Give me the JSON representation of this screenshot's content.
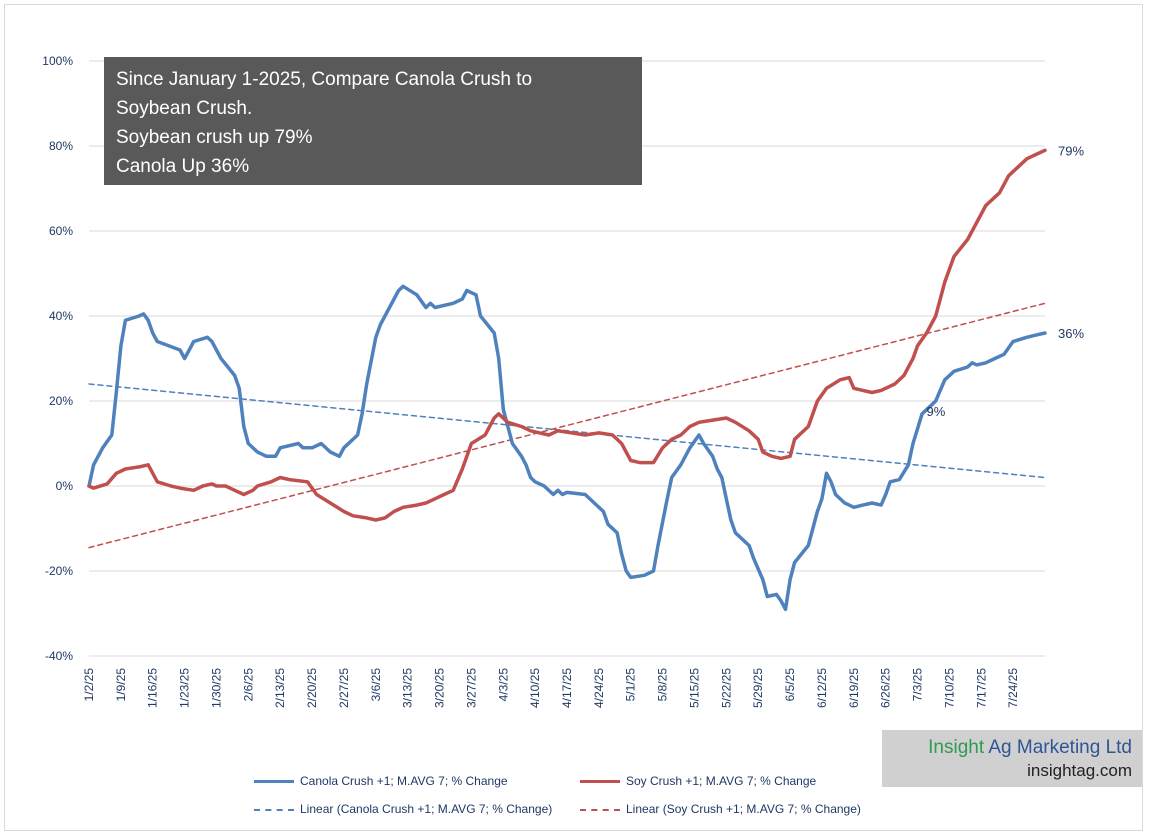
{
  "annotation": {
    "lines": [
      "Since January 1-2025, Compare Canola Crush to",
      "Soybean Crush.",
      "Soybean crush up 79%",
      "Canola Up 36%"
    ]
  },
  "logo": {
    "name_word1": "Insight",
    "name_rest": " Ag Marketing Ltd",
    "site": "insightag.com"
  },
  "chart_data": {
    "type": "line",
    "x_start": "1/2/25",
    "x_end": "7/31/25",
    "x_tick_labels": [
      "1/2/25",
      "1/9/25",
      "1/16/25",
      "1/23/25",
      "1/30/25",
      "2/6/25",
      "2/13/25",
      "2/20/25",
      "2/27/25",
      "3/6/25",
      "3/13/25",
      "3/20/25",
      "3/27/25",
      "4/3/25",
      "4/10/25",
      "4/17/25",
      "4/24/25",
      "5/1/25",
      "5/8/25",
      "5/15/25",
      "5/22/25",
      "5/29/25",
      "6/5/25",
      "6/12/25",
      "6/19/25",
      "6/26/25",
      "7/3/25",
      "7/10/25",
      "7/17/25",
      "7/24/25"
    ],
    "y_tick_labels": [
      "100%",
      "80%",
      "60%",
      "40%",
      "20%",
      "0%",
      "-20%",
      "-40%"
    ],
    "ylim": [
      -40,
      100
    ],
    "grid": "horizontal",
    "legend_position": "bottom",
    "series": [
      {
        "name": "Canola Crush +1; M.AVG 7; % Change",
        "color": "#4f81bd",
        "style": "solid",
        "points": [
          [
            "1/2/25",
            0
          ],
          [
            "1/3/25",
            5
          ],
          [
            "1/5/25",
            9
          ],
          [
            "1/7/25",
            12
          ],
          [
            "1/8/25",
            22
          ],
          [
            "1/9/25",
            33
          ],
          [
            "1/10/25",
            39
          ],
          [
            "1/13/25",
            40
          ],
          [
            "1/14/25",
            40.5
          ],
          [
            "1/15/25",
            39
          ],
          [
            "1/16/25",
            36
          ],
          [
            "1/17/25",
            34
          ],
          [
            "1/22/25",
            32
          ],
          [
            "1/23/25",
            30
          ],
          [
            "1/24/25",
            32
          ],
          [
            "1/25/25",
            34
          ],
          [
            "1/28/25",
            35
          ],
          [
            "1/29/25",
            34
          ],
          [
            "1/31/25",
            30
          ],
          [
            "2/3/25",
            26
          ],
          [
            "2/4/25",
            23
          ],
          [
            "2/5/25",
            14
          ],
          [
            "2/6/25",
            10
          ],
          [
            "2/8/25",
            8
          ],
          [
            "2/10/25",
            7
          ],
          [
            "2/12/25",
            7
          ],
          [
            "2/13/25",
            9
          ],
          [
            "2/17/25",
            10
          ],
          [
            "2/18/25",
            9
          ],
          [
            "2/20/25",
            9
          ],
          [
            "2/22/25",
            10
          ],
          [
            "2/24/25",
            8
          ],
          [
            "2/26/25",
            7
          ],
          [
            "2/27/25",
            9
          ],
          [
            "3/2/25",
            12
          ],
          [
            "3/3/25",
            17
          ],
          [
            "3/4/25",
            24
          ],
          [
            "3/6/25",
            35
          ],
          [
            "3/7/25",
            38
          ],
          [
            "3/9/25",
            42
          ],
          [
            "3/11/25",
            46
          ],
          [
            "3/12/25",
            47
          ],
          [
            "3/15/25",
            45
          ],
          [
            "3/17/25",
            42
          ],
          [
            "3/18/25",
            43
          ],
          [
            "3/19/25",
            42
          ],
          [
            "3/23/25",
            43
          ],
          [
            "3/25/25",
            44
          ],
          [
            "3/26/25",
            46
          ],
          [
            "3/28/25",
            45
          ],
          [
            "3/29/25",
            40
          ],
          [
            "4/1/25",
            36
          ],
          [
            "4/2/25",
            30
          ],
          [
            "4/3/25",
            18
          ],
          [
            "4/5/25",
            10
          ],
          [
            "4/7/25",
            7
          ],
          [
            "4/8/25",
            5
          ],
          [
            "4/9/25",
            2
          ],
          [
            "4/10/25",
            1
          ],
          [
            "4/12/25",
            0
          ],
          [
            "4/14/25",
            -2
          ],
          [
            "4/15/25",
            -1
          ],
          [
            "4/16/25",
            -2
          ],
          [
            "4/17/25",
            -1.5
          ],
          [
            "4/21/25",
            -2
          ],
          [
            "4/23/25",
            -4
          ],
          [
            "4/25/25",
            -6
          ],
          [
            "4/26/25",
            -9
          ],
          [
            "4/28/25",
            -11
          ],
          [
            "4/29/25",
            -16
          ],
          [
            "4/30/25",
            -20
          ],
          [
            "5/1/25",
            -21.5
          ],
          [
            "5/4/25",
            -21
          ],
          [
            "5/6/25",
            -20
          ],
          [
            "5/7/25",
            -14
          ],
          [
            "5/9/25",
            -3
          ],
          [
            "5/10/25",
            2
          ],
          [
            "5/12/25",
            5
          ],
          [
            "5/14/25",
            9
          ],
          [
            "5/16/25",
            12
          ],
          [
            "5/17/25",
            10
          ],
          [
            "5/19/25",
            7
          ],
          [
            "5/20/25",
            4
          ],
          [
            "5/21/25",
            2
          ],
          [
            "5/22/25",
            -3
          ],
          [
            "5/23/25",
            -8
          ],
          [
            "5/24/25",
            -11
          ],
          [
            "5/27/25",
            -14
          ],
          [
            "5/28/25",
            -17
          ],
          [
            "5/30/25",
            -22
          ],
          [
            "5/31/25",
            -26
          ],
          [
            "6/2/25",
            -25.5
          ],
          [
            "6/3/25",
            -27
          ],
          [
            "6/4/25",
            -29
          ],
          [
            "6/5/25",
            -22
          ],
          [
            "6/6/25",
            -18
          ],
          [
            "6/9/25",
            -14
          ],
          [
            "6/11/25",
            -6
          ],
          [
            "6/12/25",
            -3
          ],
          [
            "6/13/25",
            3
          ],
          [
            "6/14/25",
            1
          ],
          [
            "6/15/25",
            -2
          ],
          [
            "6/17/25",
            -4
          ],
          [
            "6/18/25",
            -4.5
          ],
          [
            "6/19/25",
            -5
          ],
          [
            "6/21/25",
            -4.5
          ],
          [
            "6/23/25",
            -4
          ],
          [
            "6/25/25",
            -4.5
          ],
          [
            "6/26/25",
            -2
          ],
          [
            "6/27/25",
            1
          ],
          [
            "6/29/25",
            1.5
          ],
          [
            "7/1/25",
            5
          ],
          [
            "7/2/25",
            10
          ],
          [
            "7/4/25",
            17
          ],
          [
            "7/6/25",
            19
          ],
          [
            "7/7/25",
            20
          ],
          [
            "7/9/25",
            25
          ],
          [
            "7/11/25",
            27
          ],
          [
            "7/14/25",
            28
          ],
          [
            "7/15/25",
            29
          ],
          [
            "7/16/25",
            28.5
          ],
          [
            "7/18/25",
            29
          ],
          [
            "7/20/25",
            30
          ],
          [
            "7/22/25",
            31
          ],
          [
            "7/24/25",
            34
          ],
          [
            "7/27/25",
            35
          ],
          [
            "7/29/25",
            35.5
          ],
          [
            "7/31/25",
            36
          ]
        ]
      },
      {
        "name": "Soy Crush +1; M.AVG 7; % Change",
        "color": "#c0504d",
        "style": "solid",
        "points": [
          [
            "1/2/25",
            0
          ],
          [
            "1/3/25",
            -0.5
          ],
          [
            "1/6/25",
            0.5
          ],
          [
            "1/8/25",
            3
          ],
          [
            "1/10/25",
            4
          ],
          [
            "1/13/25",
            4.5
          ],
          [
            "1/15/25",
            5
          ],
          [
            "1/17/25",
            1
          ],
          [
            "1/20/25",
            0
          ],
          [
            "1/22/25",
            -0.5
          ],
          [
            "1/25/25",
            -1
          ],
          [
            "1/27/25",
            0
          ],
          [
            "1/29/25",
            0.5
          ],
          [
            "1/30/25",
            0
          ],
          [
            "2/1/25",
            0
          ],
          [
            "2/3/25",
            -1
          ],
          [
            "2/5/25",
            -2
          ],
          [
            "2/7/25",
            -1
          ],
          [
            "2/8/25",
            0
          ],
          [
            "2/11/25",
            1
          ],
          [
            "2/13/25",
            2
          ],
          [
            "2/15/25",
            1.5
          ],
          [
            "2/19/25",
            1
          ],
          [
            "2/21/25",
            -2
          ],
          [
            "2/24/25",
            -4
          ],
          [
            "2/27/25",
            -6
          ],
          [
            "3/1/25",
            -7
          ],
          [
            "3/4/25",
            -7.5
          ],
          [
            "3/6/25",
            -8
          ],
          [
            "3/8/25",
            -7.5
          ],
          [
            "3/10/25",
            -6
          ],
          [
            "3/12/25",
            -5
          ],
          [
            "3/15/25",
            -4.5
          ],
          [
            "3/17/25",
            -4
          ],
          [
            "3/19/25",
            -3
          ],
          [
            "3/21/25",
            -2
          ],
          [
            "3/23/25",
            -1
          ],
          [
            "3/25/25",
            4
          ],
          [
            "3/27/25",
            10
          ],
          [
            "3/30/25",
            12
          ],
          [
            "4/1/25",
            16
          ],
          [
            "4/2/25",
            17
          ],
          [
            "4/4/25",
            15
          ],
          [
            "4/7/25",
            14
          ],
          [
            "4/9/25",
            13
          ],
          [
            "4/11/25",
            12.5
          ],
          [
            "4/13/25",
            12
          ],
          [
            "4/15/25",
            13
          ],
          [
            "4/18/25",
            12.5
          ],
          [
            "4/21/25",
            12
          ],
          [
            "4/24/25",
            12.5
          ],
          [
            "4/27/25",
            12
          ],
          [
            "4/29/25",
            10
          ],
          [
            "5/1/25",
            6
          ],
          [
            "5/3/25",
            5.5
          ],
          [
            "5/6/25",
            5.5
          ],
          [
            "5/8/25",
            9
          ],
          [
            "5/10/25",
            11
          ],
          [
            "5/12/25",
            12
          ],
          [
            "5/14/25",
            14
          ],
          [
            "5/16/25",
            15
          ],
          [
            "5/19/25",
            15.5
          ],
          [
            "5/22/25",
            16
          ],
          [
            "5/24/25",
            15
          ],
          [
            "5/27/25",
            13
          ],
          [
            "5/29/25",
            11
          ],
          [
            "5/30/25",
            8
          ],
          [
            "6/1/25",
            7
          ],
          [
            "6/3/25",
            6.5
          ],
          [
            "6/5/25",
            7
          ],
          [
            "6/6/25",
            11
          ],
          [
            "6/9/25",
            14
          ],
          [
            "6/11/25",
            20
          ],
          [
            "6/13/25",
            23
          ],
          [
            "6/16/25",
            25
          ],
          [
            "6/18/25",
            25.5
          ],
          [
            "6/19/25",
            23
          ],
          [
            "6/21/25",
            22.5
          ],
          [
            "6/23/25",
            22
          ],
          [
            "6/25/25",
            22.5
          ],
          [
            "6/26/25",
            23
          ],
          [
            "6/28/25",
            24
          ],
          [
            "6/30/25",
            26
          ],
          [
            "7/2/25",
            30
          ],
          [
            "7/3/25",
            33
          ],
          [
            "7/5/25",
            36
          ],
          [
            "7/7/25",
            40
          ],
          [
            "7/9/25",
            48
          ],
          [
            "7/11/25",
            54
          ],
          [
            "7/14/25",
            58
          ],
          [
            "7/16/25",
            62
          ],
          [
            "7/18/25",
            66
          ],
          [
            "7/21/25",
            69
          ],
          [
            "7/23/25",
            73
          ],
          [
            "7/25/25",
            75
          ],
          [
            "7/27/25",
            77
          ],
          [
            "7/29/25",
            78
          ],
          [
            "7/31/25",
            79
          ]
        ]
      },
      {
        "name": "Linear (Canola Crush +1; M.AVG 7; % Change)",
        "color": "#4f81bd",
        "style": "dashed",
        "points": [
          [
            "1/2/25",
            24
          ],
          [
            "7/31/25",
            2
          ]
        ]
      },
      {
        "name": "Linear (Soy Crush +1; M.AVG 7; % Change)",
        "color": "#c0504d",
        "style": "dashed",
        "points": [
          [
            "1/2/25",
            -14.5
          ],
          [
            "7/31/25",
            43
          ]
        ]
      }
    ],
    "data_labels": [
      {
        "text": "79%",
        "x": "7/31/25",
        "y": 79
      },
      {
        "text": "36%",
        "x": "7/31/25",
        "y": 36
      },
      {
        "text": "9%",
        "x": "7/3/25",
        "y": 9
      }
    ]
  }
}
